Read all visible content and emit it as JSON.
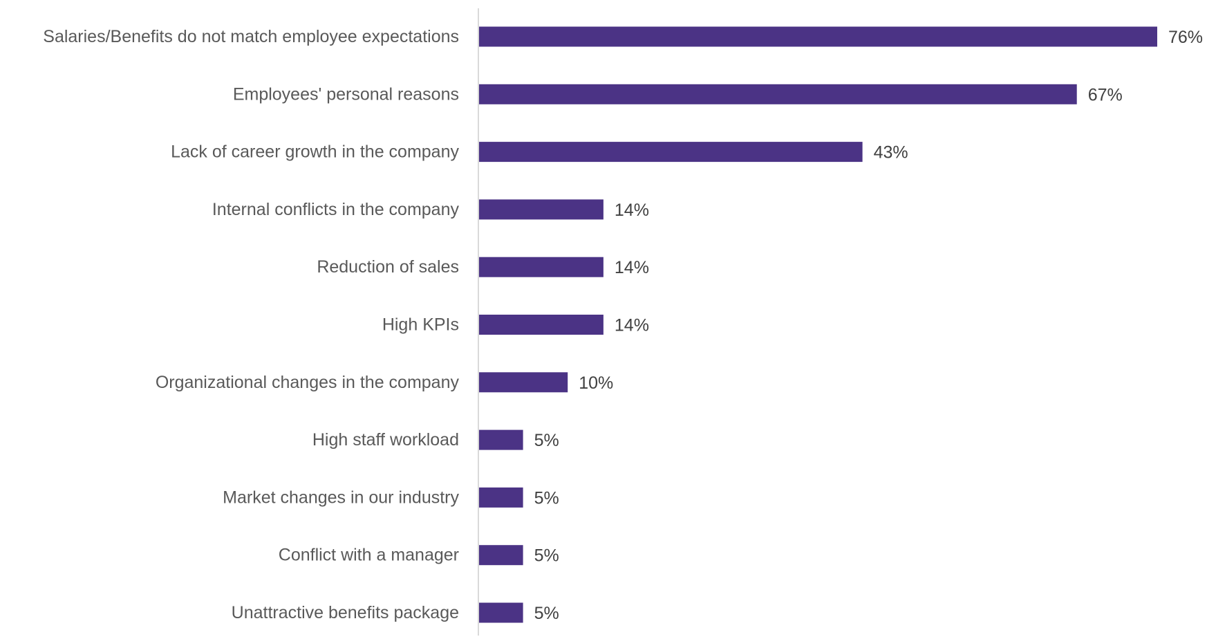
{
  "chart_data": {
    "type": "bar",
    "orientation": "horizontal",
    "title": "",
    "xlabel": "",
    "ylabel": "",
    "categories": [
      "Salaries/Benefits do not match employee expectations",
      "Employees' personal reasons",
      "Lack of career growth in the company",
      "Internal conflicts in the company",
      "Reduction of sales",
      "High KPIs",
      "Organizational changes in the company",
      "High staff workload",
      "Market changes in our industry",
      "Conflict with a manager",
      "Unattractive benefits package"
    ],
    "values": [
      76,
      67,
      43,
      14,
      14,
      14,
      10,
      5,
      5,
      5,
      5
    ],
    "data_labels": [
      "76%",
      "67%",
      "43%",
      "14%",
      "14%",
      "14%",
      "10%",
      "5%",
      "5%",
      "5%",
      "5%"
    ],
    "xlim": [
      0,
      76
    ],
    "grid": false,
    "legend": "none",
    "colors": {
      "bar": "#4b3385",
      "axis": "#d9d9d9",
      "category_text": "#595959",
      "value_text": "#404040"
    }
  }
}
